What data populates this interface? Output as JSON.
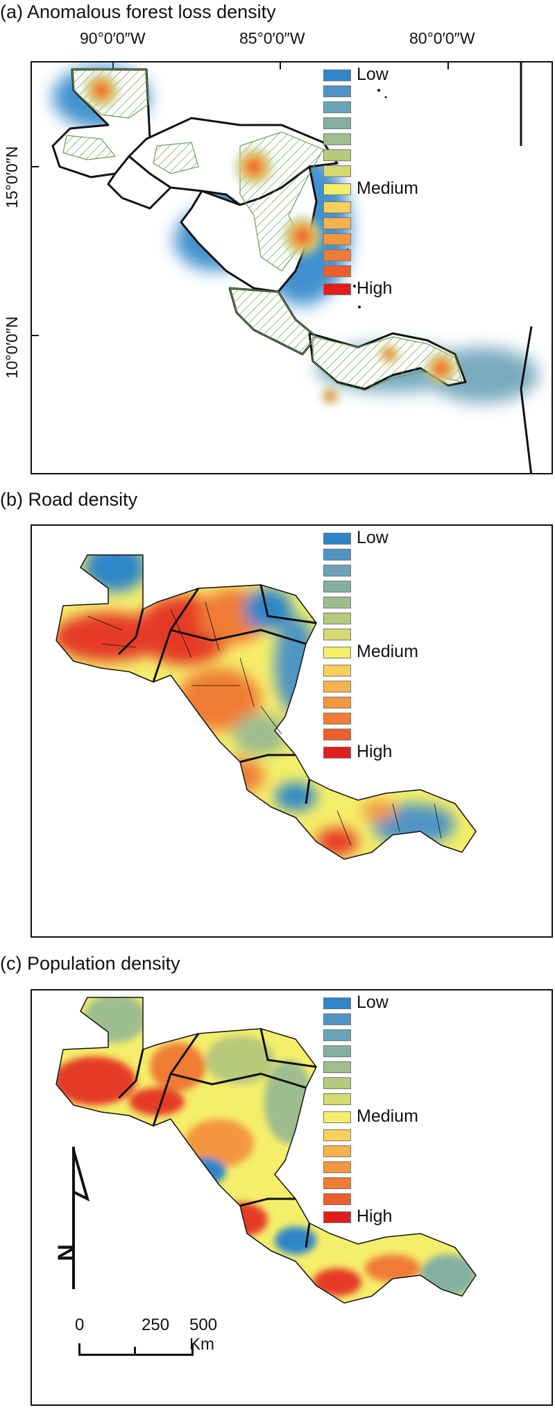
{
  "panels": {
    "a": {
      "title": "(a) Anomalous forest loss density"
    },
    "b": {
      "title": "(b) Road density"
    },
    "c": {
      "title": "(c) Population density"
    }
  },
  "axes": {
    "lon": [
      "90°0′0″W",
      "85°0′0″W",
      "80°0′0″W"
    ],
    "lat": [
      "15°0′0″N",
      "10°0′0″N"
    ]
  },
  "legend": {
    "low": "Low",
    "medium": "Medium",
    "high": "High",
    "colors": [
      "#2e86c9",
      "#4f94c4",
      "#6ba3b8",
      "#84b0a3",
      "#9dbd8f",
      "#b8c97c",
      "#d4d972",
      "#f5ee6a",
      "#f8cf58",
      "#f7b24c",
      "#f4973f",
      "#f07c35",
      "#ec5f2c",
      "#e53a25",
      "#e11d1d"
    ]
  },
  "scale_bar": {
    "labels": [
      "0",
      "250",
      "500 Km"
    ]
  },
  "north_arrow": {
    "label": "N"
  }
}
